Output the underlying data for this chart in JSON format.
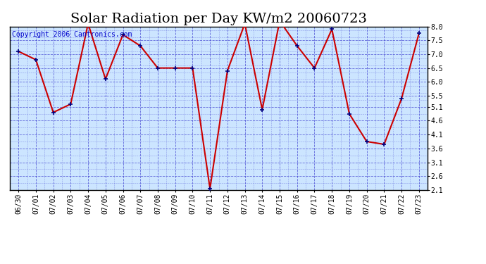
{
  "title": "Solar Radiation per Day KW/m2 20060723",
  "copyright": "Copyright 2006 Cantronics.com",
  "dates": [
    "06/30",
    "07/01",
    "07/02",
    "07/03",
    "07/04",
    "07/05",
    "07/06",
    "07/07",
    "07/08",
    "07/09",
    "07/10",
    "07/11",
    "07/12",
    "07/13",
    "07/14",
    "07/15",
    "07/16",
    "07/17",
    "07/18",
    "07/19",
    "07/20",
    "07/21",
    "07/22",
    "07/23"
  ],
  "values": [
    7.1,
    6.8,
    4.9,
    5.2,
    8.1,
    6.1,
    7.7,
    7.3,
    6.5,
    6.5,
    6.5,
    2.15,
    6.4,
    8.1,
    5.0,
    8.2,
    7.3,
    6.5,
    7.9,
    4.85,
    3.85,
    3.75,
    5.4,
    7.75
  ],
  "line_color": "#cc0000",
  "marker_color": "#000080",
  "fig_bg_color": "#ffffff",
  "plot_bg_color": "#cce5ff",
  "grid_color": "#3333cc",
  "title_color": "#000000",
  "copyright_color": "#0000cc",
  "ylim_min": 2.1,
  "ylim_max": 8.0,
  "yticks": [
    2.1,
    2.6,
    3.1,
    3.6,
    4.1,
    4.6,
    5.1,
    5.5,
    6.0,
    6.5,
    7.0,
    7.5,
    8.0
  ],
  "title_fontsize": 14,
  "tick_fontsize": 7,
  "copyright_fontsize": 7
}
